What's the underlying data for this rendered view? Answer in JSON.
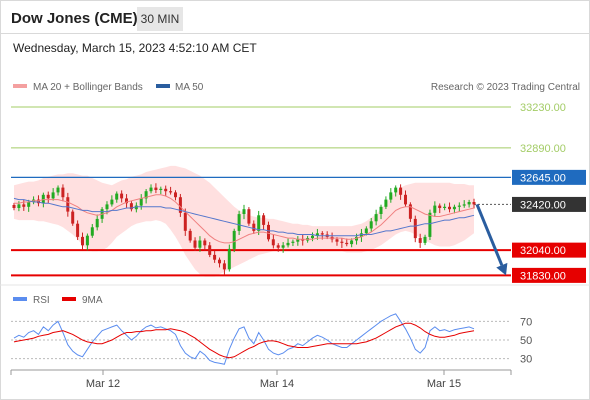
{
  "header": {
    "title": "Dow Jones (CME)",
    "timeframe": "30 MIN",
    "timestamp": "Wednesday, March 15, 2023 4:52:10 AM CET"
  },
  "legend": {
    "ma20": "MA 20 + Bollinger Bands",
    "ma50": "MA 50",
    "credit": "Research © 2023 Trading Central",
    "rsi": "RSI",
    "ma9": "9MA"
  },
  "colors": {
    "resistance_green": "#a3cc66",
    "pivot_blue": "#1f6bbf",
    "support_red": "#e60000",
    "current_dark": "#333333",
    "candle_up": "#22aa22",
    "candle_down": "#cc2222",
    "bollinger_fill": "#ffd6d6",
    "ma20": "#f08080",
    "ma50": "#5577cc",
    "arrow": "#2a5d9f",
    "rsi_line": "#5b8def"
  },
  "chart_data": [
    {
      "type": "candlestick",
      "price_axis": {
        "min": 31750,
        "max": 33330
      },
      "x_ticks": [
        "Mar 12",
        "Mar 14",
        "Mar 15"
      ],
      "levels": [
        {
          "label": "33230.00",
          "value": 33230,
          "kind": "resistance"
        },
        {
          "label": "32890.00",
          "value": 32890,
          "kind": "resistance"
        },
        {
          "label": "32645.00",
          "value": 32645,
          "kind": "pivot"
        },
        {
          "label": "32420.00",
          "value": 32420,
          "kind": "current"
        },
        {
          "label": "32040.00",
          "value": 32040,
          "kind": "support"
        },
        {
          "label": "31830.00",
          "value": 31830,
          "kind": "support"
        }
      ],
      "closes": [
        32390,
        32420,
        32400,
        32440,
        32460,
        32430,
        32500,
        32470,
        32520,
        32560,
        32480,
        32360,
        32260,
        32150,
        32080,
        32160,
        32230,
        32300,
        32380,
        32420,
        32460,
        32510,
        32470,
        32430,
        32380,
        32410,
        32470,
        32530,
        32560,
        32540,
        32550,
        32530,
        32520,
        32480,
        32350,
        32200,
        32120,
        32060,
        32120,
        32080,
        32000,
        31960,
        31930,
        31880,
        32050,
        32200,
        32340,
        32380,
        32260,
        32200,
        32330,
        32250,
        32130,
        32080,
        32060,
        32080,
        32100,
        32110,
        32130,
        32120,
        32140,
        32160,
        32180,
        32170,
        32150,
        32130,
        32110,
        32100,
        32090,
        32120,
        32150,
        32180,
        32220,
        32280,
        32340,
        32400,
        32460,
        32520,
        32560,
        32500,
        32420,
        32300,
        32140,
        32100,
        32150,
        32350,
        32410,
        32390,
        32400,
        32380,
        32400,
        32410,
        32420,
        32440,
        32420
      ],
      "ma20": [
        32430,
        32430,
        32440,
        32440,
        32450,
        32450,
        32460,
        32460,
        32460,
        32460,
        32450,
        32440,
        32420,
        32400,
        32370,
        32350,
        32340,
        32330,
        32340,
        32350,
        32370,
        32400,
        32420,
        32440,
        32450,
        32460,
        32470,
        32480,
        32490,
        32500,
        32500,
        32490,
        32470,
        32440,
        32400,
        32360,
        32320,
        32280,
        32240,
        32200,
        32160,
        32130,
        32110,
        32100,
        32100,
        32110,
        32130,
        32150,
        32170,
        32180,
        32190,
        32190,
        32180,
        32170,
        32160,
        32150,
        32140,
        32140,
        32130,
        32130,
        32130,
        32130,
        32140,
        32140,
        32140,
        32140,
        32140,
        32140,
        32130,
        32130,
        32140,
        32150,
        32170,
        32190,
        32220,
        32250,
        32290,
        32330,
        32370,
        32390,
        32400,
        32400,
        32380,
        32360,
        32340,
        32330,
        32320,
        32320,
        32330,
        32340,
        32350,
        32360,
        32370,
        32380,
        32390
      ],
      "ma50": [
        32470,
        32460,
        32460,
        32450,
        32440,
        32440,
        32430,
        32430,
        32420,
        32410,
        32400,
        32400,
        32390,
        32380,
        32370,
        32370,
        32360,
        32360,
        32360,
        32360,
        32370,
        32370,
        32380,
        32390,
        32390,
        32400,
        32400,
        32400,
        32400,
        32400,
        32400,
        32390,
        32390,
        32380,
        32370,
        32360,
        32350,
        32340,
        32330,
        32320,
        32310,
        32300,
        32290,
        32280,
        32270,
        32260,
        32250,
        32240,
        32230,
        32220,
        32210,
        32210,
        32200,
        32200,
        32190,
        32190,
        32180,
        32180,
        32170,
        32170,
        32170,
        32170,
        32160,
        32160,
        32160,
        32160,
        32160,
        32160,
        32160,
        32160,
        32160,
        32170,
        32170,
        32170,
        32180,
        32190,
        32200,
        32200,
        32210,
        32220,
        32230,
        32240,
        32240,
        32250,
        32260,
        32260,
        32270,
        32280,
        32290,
        32290,
        32300,
        32310,
        32310,
        32320,
        32330
      ],
      "boll_upper": [
        32580,
        32590,
        32600,
        32610,
        32610,
        32620,
        32640,
        32650,
        32660,
        32670,
        32670,
        32680,
        32680,
        32670,
        32660,
        32660,
        32640,
        32620,
        32600,
        32590,
        32580,
        32600,
        32620,
        32630,
        32650,
        32660,
        32670,
        32690,
        32700,
        32710,
        32720,
        32730,
        32740,
        32740,
        32730,
        32720,
        32700,
        32680,
        32660,
        32630,
        32600,
        32560,
        32520,
        32480,
        32440,
        32400,
        32370,
        32350,
        32330,
        32320,
        32310,
        32310,
        32300,
        32300,
        32290,
        32280,
        32270,
        32260,
        32260,
        32250,
        32250,
        32240,
        32240,
        32240,
        32240,
        32240,
        32240,
        32240,
        32240,
        32240,
        32250,
        32260,
        32280,
        32310,
        32340,
        32380,
        32430,
        32480,
        32530,
        32560,
        32580,
        32590,
        32600,
        32600,
        32600,
        32600,
        32600,
        32600,
        32600,
        32600,
        32590,
        32590,
        32590,
        32580,
        32580
      ],
      "boll_lower": [
        32300,
        32290,
        32290,
        32290,
        32290,
        32280,
        32280,
        32270,
        32260,
        32250,
        32230,
        32200,
        32170,
        32130,
        32080,
        32040,
        32030,
        32030,
        32040,
        32060,
        32100,
        32150,
        32180,
        32210,
        32240,
        32260,
        32270,
        32280,
        32280,
        32290,
        32280,
        32260,
        32210,
        32150,
        32080,
        32000,
        31940,
        31880,
        31840,
        31820,
        31820,
        31820,
        31840,
        31860,
        31880,
        31900,
        31920,
        31940,
        31960,
        31980,
        32000,
        32010,
        32020,
        32030,
        32030,
        32030,
        32030,
        32030,
        32030,
        32030,
        32030,
        32030,
        32030,
        32030,
        32030,
        32030,
        32030,
        32030,
        32020,
        32020,
        32020,
        32020,
        32030,
        32040,
        32060,
        32080,
        32110,
        32140,
        32170,
        32190,
        32200,
        32190,
        32170,
        32140,
        32120,
        32100,
        32080,
        32070,
        32070,
        32070,
        32080,
        32100,
        32120,
        32150,
        32180
      ],
      "forecast_arrow": {
        "from": 32420,
        "to": 31830
      }
    },
    {
      "type": "line",
      "name": "RSI",
      "y_ticks": [
        "70",
        "50",
        "30"
      ],
      "y_range": [
        20,
        80
      ],
      "rsi": [
        52,
        55,
        53,
        58,
        60,
        56,
        64,
        60,
        66,
        70,
        58,
        45,
        38,
        34,
        32,
        40,
        48,
        54,
        60,
        62,
        64,
        66,
        60,
        55,
        50,
        54,
        60,
        64,
        66,
        63,
        64,
        62,
        60,
        56,
        44,
        36,
        32,
        30,
        38,
        34,
        28,
        26,
        25,
        24,
        40,
        52,
        62,
        64,
        52,
        46,
        58,
        50,
        40,
        36,
        34,
        36,
        40,
        42,
        46,
        44,
        48,
        52,
        55,
        53,
        50,
        46,
        44,
        42,
        42,
        46,
        50,
        54,
        58,
        62,
        66,
        70,
        73,
        76,
        78,
        70,
        62,
        52,
        40,
        36,
        42,
        60,
        64,
        60,
        61,
        59,
        61,
        62,
        63,
        64,
        62
      ],
      "ma9": [
        48,
        49,
        50,
        51,
        52,
        54,
        55,
        56,
        58,
        59,
        60,
        58,
        56,
        53,
        50,
        48,
        47,
        46,
        46,
        48,
        50,
        53,
        56,
        58,
        58,
        59,
        59,
        60,
        60,
        61,
        61,
        61,
        62,
        61,
        60,
        58,
        55,
        52,
        48,
        44,
        40,
        37,
        34,
        32,
        31,
        32,
        35,
        38,
        41,
        43,
        46,
        48,
        49,
        49,
        48,
        46,
        44,
        43,
        42,
        42,
        42,
        43,
        44,
        45,
        46,
        46,
        46,
        46,
        46,
        46,
        46,
        47,
        48,
        50,
        52,
        55,
        58,
        61,
        64,
        66,
        68,
        68,
        66,
        63,
        59,
        56,
        54,
        53,
        53,
        54,
        55,
        57,
        58,
        59,
        60
      ]
    }
  ]
}
